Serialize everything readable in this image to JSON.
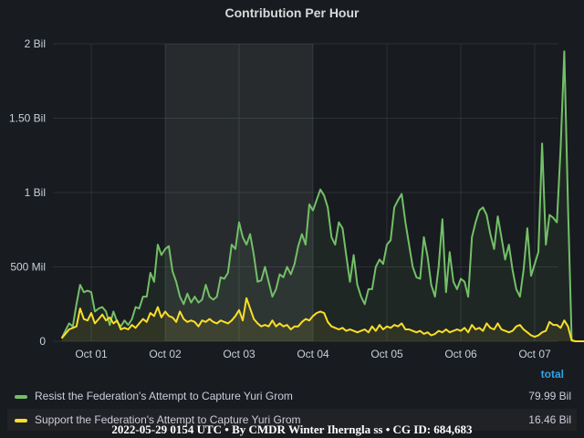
{
  "chart_data": {
    "type": "line",
    "title": "Contribution Per Hour",
    "y_ticks": [
      "0",
      "500 Mil",
      "1 Bil",
      "1.50 Bil",
      "2 Bil"
    ],
    "y_tick_values": [
      0,
      500000000,
      1000000000,
      1500000000,
      2000000000
    ],
    "ylim": [
      0,
      2000000000
    ],
    "x_ticks": [
      "Oct 01",
      "Oct 02",
      "Oct 03",
      "Oct 04",
      "Oct 05",
      "Oct 06",
      "Oct 07"
    ],
    "x_range_days": [
      0.58,
      7.3
    ],
    "highlight_range_days": [
      2.0,
      4.0
    ],
    "grid": true,
    "series": [
      {
        "name": "Resist the Federation's Attempt to Capture Yuri Grom",
        "color": "#73bf69",
        "total": "79.99 Bil",
        "points": [
          [
            0.6,
            20000000
          ],
          [
            0.7,
            120000000
          ],
          [
            0.75,
            100000000
          ],
          [
            0.8,
            250000000
          ],
          [
            0.85,
            380000000
          ],
          [
            0.9,
            330000000
          ],
          [
            0.95,
            340000000
          ],
          [
            1.0,
            330000000
          ],
          [
            1.05,
            200000000
          ],
          [
            1.1,
            220000000
          ],
          [
            1.15,
            230000000
          ],
          [
            1.2,
            200000000
          ],
          [
            1.25,
            110000000
          ],
          [
            1.3,
            200000000
          ],
          [
            1.35,
            130000000
          ],
          [
            1.4,
            100000000
          ],
          [
            1.45,
            140000000
          ],
          [
            1.5,
            110000000
          ],
          [
            1.55,
            150000000
          ],
          [
            1.6,
            230000000
          ],
          [
            1.65,
            220000000
          ],
          [
            1.7,
            300000000
          ],
          [
            1.75,
            300000000
          ],
          [
            1.8,
            460000000
          ],
          [
            1.85,
            400000000
          ],
          [
            1.9,
            650000000
          ],
          [
            1.95,
            580000000
          ],
          [
            2.0,
            620000000
          ],
          [
            2.05,
            640000000
          ],
          [
            2.1,
            470000000
          ],
          [
            2.15,
            400000000
          ],
          [
            2.2,
            300000000
          ],
          [
            2.25,
            250000000
          ],
          [
            2.3,
            320000000
          ],
          [
            2.35,
            260000000
          ],
          [
            2.4,
            300000000
          ],
          [
            2.45,
            260000000
          ],
          [
            2.5,
            280000000
          ],
          [
            2.55,
            380000000
          ],
          [
            2.6,
            300000000
          ],
          [
            2.65,
            280000000
          ],
          [
            2.7,
            300000000
          ],
          [
            2.75,
            430000000
          ],
          [
            2.8,
            420000000
          ],
          [
            2.85,
            460000000
          ],
          [
            2.9,
            650000000
          ],
          [
            2.95,
            620000000
          ],
          [
            3.0,
            800000000
          ],
          [
            3.05,
            700000000
          ],
          [
            3.1,
            650000000
          ],
          [
            3.15,
            720000000
          ],
          [
            3.2,
            580000000
          ],
          [
            3.25,
            400000000
          ],
          [
            3.3,
            410000000
          ],
          [
            3.35,
            500000000
          ],
          [
            3.4,
            400000000
          ],
          [
            3.45,
            300000000
          ],
          [
            3.5,
            350000000
          ],
          [
            3.55,
            450000000
          ],
          [
            3.6,
            430000000
          ],
          [
            3.65,
            500000000
          ],
          [
            3.7,
            450000000
          ],
          [
            3.75,
            520000000
          ],
          [
            3.8,
            640000000
          ],
          [
            3.85,
            720000000
          ],
          [
            3.9,
            650000000
          ],
          [
            3.95,
            920000000
          ],
          [
            4.0,
            880000000
          ],
          [
            4.05,
            950000000
          ],
          [
            4.1,
            1020000000
          ],
          [
            4.15,
            980000000
          ],
          [
            4.2,
            900000000
          ],
          [
            4.25,
            700000000
          ],
          [
            4.3,
            650000000
          ],
          [
            4.35,
            800000000
          ],
          [
            4.4,
            760000000
          ],
          [
            4.45,
            580000000
          ],
          [
            4.5,
            400000000
          ],
          [
            4.55,
            580000000
          ],
          [
            4.6,
            380000000
          ],
          [
            4.65,
            300000000
          ],
          [
            4.7,
            250000000
          ],
          [
            4.75,
            350000000
          ],
          [
            4.8,
            350000000
          ],
          [
            4.85,
            500000000
          ],
          [
            4.9,
            550000000
          ],
          [
            4.95,
            520000000
          ],
          [
            5.0,
            650000000
          ],
          [
            5.05,
            680000000
          ],
          [
            5.1,
            900000000
          ],
          [
            5.15,
            950000000
          ],
          [
            5.2,
            990000000
          ],
          [
            5.25,
            800000000
          ],
          [
            5.3,
            650000000
          ],
          [
            5.35,
            500000000
          ],
          [
            5.4,
            430000000
          ],
          [
            5.45,
            420000000
          ],
          [
            5.5,
            700000000
          ],
          [
            5.55,
            570000000
          ],
          [
            5.6,
            380000000
          ],
          [
            5.65,
            300000000
          ],
          [
            5.7,
            500000000
          ],
          [
            5.75,
            820000000
          ],
          [
            5.8,
            330000000
          ],
          [
            5.85,
            600000000
          ],
          [
            5.9,
            400000000
          ],
          [
            5.95,
            350000000
          ],
          [
            6.0,
            420000000
          ],
          [
            6.05,
            400000000
          ],
          [
            6.1,
            300000000
          ],
          [
            6.15,
            700000000
          ],
          [
            6.2,
            800000000
          ],
          [
            6.25,
            880000000
          ],
          [
            6.3,
            900000000
          ],
          [
            6.35,
            850000000
          ],
          [
            6.4,
            720000000
          ],
          [
            6.45,
            620000000
          ],
          [
            6.5,
            840000000
          ],
          [
            6.55,
            700000000
          ],
          [
            6.6,
            550000000
          ],
          [
            6.65,
            650000000
          ],
          [
            6.7,
            480000000
          ],
          [
            6.75,
            350000000
          ],
          [
            6.8,
            300000000
          ],
          [
            6.85,
            480000000
          ],
          [
            6.9,
            760000000
          ],
          [
            6.95,
            440000000
          ],
          [
            7.0,
            520000000
          ],
          [
            7.05,
            600000000
          ],
          [
            7.1,
            1330000000
          ],
          [
            7.15,
            650000000
          ],
          [
            7.2,
            850000000
          ],
          [
            7.25,
            830000000
          ],
          [
            7.3,
            800000000
          ],
          [
            7.35,
            1300000000
          ],
          [
            7.4,
            1950000000
          ],
          [
            7.45,
            900000000
          ],
          [
            7.5,
            10000000
          ],
          [
            7.55,
            0
          ],
          [
            7.6,
            0
          ],
          [
            7.65,
            0
          ],
          [
            7.7,
            0
          ],
          [
            7.75,
            0
          ],
          [
            7.8,
            0
          ]
        ]
      },
      {
        "name": "Support the Federation's Attempt to Capture Yuri Grom",
        "color": "#fade2a",
        "total": "16.46 Bil",
        "points": [
          [
            0.6,
            20000000
          ],
          [
            0.7,
            80000000
          ],
          [
            0.75,
            90000000
          ],
          [
            0.8,
            100000000
          ],
          [
            0.85,
            220000000
          ],
          [
            0.9,
            150000000
          ],
          [
            0.95,
            140000000
          ],
          [
            1.0,
            190000000
          ],
          [
            1.05,
            120000000
          ],
          [
            1.1,
            150000000
          ],
          [
            1.15,
            180000000
          ],
          [
            1.2,
            140000000
          ],
          [
            1.25,
            160000000
          ],
          [
            1.3,
            120000000
          ],
          [
            1.35,
            140000000
          ],
          [
            1.4,
            80000000
          ],
          [
            1.45,
            90000000
          ],
          [
            1.5,
            80000000
          ],
          [
            1.55,
            110000000
          ],
          [
            1.6,
            90000000
          ],
          [
            1.65,
            120000000
          ],
          [
            1.7,
            150000000
          ],
          [
            1.75,
            130000000
          ],
          [
            1.8,
            190000000
          ],
          [
            1.85,
            170000000
          ],
          [
            1.9,
            230000000
          ],
          [
            1.95,
            160000000
          ],
          [
            2.0,
            200000000
          ],
          [
            2.05,
            170000000
          ],
          [
            2.1,
            160000000
          ],
          [
            2.15,
            130000000
          ],
          [
            2.2,
            200000000
          ],
          [
            2.25,
            150000000
          ],
          [
            2.3,
            130000000
          ],
          [
            2.35,
            140000000
          ],
          [
            2.4,
            130000000
          ],
          [
            2.45,
            100000000
          ],
          [
            2.5,
            140000000
          ],
          [
            2.55,
            130000000
          ],
          [
            2.6,
            150000000
          ],
          [
            2.65,
            130000000
          ],
          [
            2.7,
            120000000
          ],
          [
            2.75,
            140000000
          ],
          [
            2.8,
            130000000
          ],
          [
            2.85,
            120000000
          ],
          [
            2.9,
            140000000
          ],
          [
            2.95,
            170000000
          ],
          [
            3.0,
            210000000
          ],
          [
            3.05,
            140000000
          ],
          [
            3.1,
            290000000
          ],
          [
            3.15,
            220000000
          ],
          [
            3.2,
            150000000
          ],
          [
            3.25,
            120000000
          ],
          [
            3.3,
            100000000
          ],
          [
            3.35,
            110000000
          ],
          [
            3.4,
            100000000
          ],
          [
            3.45,
            140000000
          ],
          [
            3.5,
            100000000
          ],
          [
            3.55,
            120000000
          ],
          [
            3.6,
            100000000
          ],
          [
            3.65,
            110000000
          ],
          [
            3.7,
            80000000
          ],
          [
            3.75,
            100000000
          ],
          [
            3.8,
            100000000
          ],
          [
            3.85,
            130000000
          ],
          [
            3.9,
            150000000
          ],
          [
            3.95,
            140000000
          ],
          [
            4.0,
            170000000
          ],
          [
            4.05,
            190000000
          ],
          [
            4.1,
            200000000
          ],
          [
            4.15,
            190000000
          ],
          [
            4.2,
            130000000
          ],
          [
            4.25,
            100000000
          ],
          [
            4.3,
            90000000
          ],
          [
            4.35,
            80000000
          ],
          [
            4.4,
            90000000
          ],
          [
            4.45,
            70000000
          ],
          [
            4.5,
            80000000
          ],
          [
            4.55,
            70000000
          ],
          [
            4.6,
            60000000
          ],
          [
            4.65,
            70000000
          ],
          [
            4.7,
            80000000
          ],
          [
            4.75,
            60000000
          ],
          [
            4.8,
            100000000
          ],
          [
            4.85,
            70000000
          ],
          [
            4.9,
            110000000
          ],
          [
            4.95,
            80000000
          ],
          [
            5.0,
            100000000
          ],
          [
            5.05,
            90000000
          ],
          [
            5.1,
            110000000
          ],
          [
            5.15,
            100000000
          ],
          [
            5.2,
            120000000
          ],
          [
            5.25,
            80000000
          ],
          [
            5.3,
            80000000
          ],
          [
            5.35,
            70000000
          ],
          [
            5.4,
            60000000
          ],
          [
            5.45,
            70000000
          ],
          [
            5.5,
            50000000
          ],
          [
            5.55,
            60000000
          ],
          [
            5.6,
            40000000
          ],
          [
            5.65,
            50000000
          ],
          [
            5.7,
            70000000
          ],
          [
            5.75,
            60000000
          ],
          [
            5.8,
            80000000
          ],
          [
            5.85,
            60000000
          ],
          [
            5.9,
            70000000
          ],
          [
            5.95,
            80000000
          ],
          [
            6.0,
            70000000
          ],
          [
            6.05,
            90000000
          ],
          [
            6.1,
            60000000
          ],
          [
            6.15,
            110000000
          ],
          [
            6.2,
            80000000
          ],
          [
            6.25,
            90000000
          ],
          [
            6.3,
            70000000
          ],
          [
            6.35,
            120000000
          ],
          [
            6.4,
            90000000
          ],
          [
            6.45,
            80000000
          ],
          [
            6.5,
            120000000
          ],
          [
            6.55,
            80000000
          ],
          [
            6.6,
            70000000
          ],
          [
            6.65,
            60000000
          ],
          [
            6.7,
            70000000
          ],
          [
            6.75,
            100000000
          ],
          [
            6.8,
            110000000
          ],
          [
            6.85,
            80000000
          ],
          [
            6.9,
            60000000
          ],
          [
            6.95,
            40000000
          ],
          [
            7.0,
            30000000
          ],
          [
            7.05,
            40000000
          ],
          [
            7.1,
            60000000
          ],
          [
            7.15,
            70000000
          ],
          [
            7.2,
            130000000
          ],
          [
            7.25,
            110000000
          ],
          [
            7.3,
            110000000
          ],
          [
            7.35,
            90000000
          ],
          [
            7.4,
            140000000
          ],
          [
            7.45,
            100000000
          ],
          [
            7.5,
            5000000
          ],
          [
            7.55,
            0
          ],
          [
            7.6,
            0
          ],
          [
            7.65,
            0
          ],
          [
            7.7,
            0
          ],
          [
            7.75,
            0
          ],
          [
            7.8,
            0
          ]
        ]
      }
    ]
  },
  "legend": {
    "header": "total",
    "entries": [
      {
        "name": "Resist the Federation's Attempt to Capture Yuri Grom",
        "total": "79.99 Bil"
      },
      {
        "name": "Support the Federation's Attempt to Capture Yuri Grom",
        "total": "16.46 Bil"
      }
    ]
  },
  "footer": "2022-05-29 0154 UTC • By CMDR Winter Iherngla ss • CG ID: 684,683"
}
